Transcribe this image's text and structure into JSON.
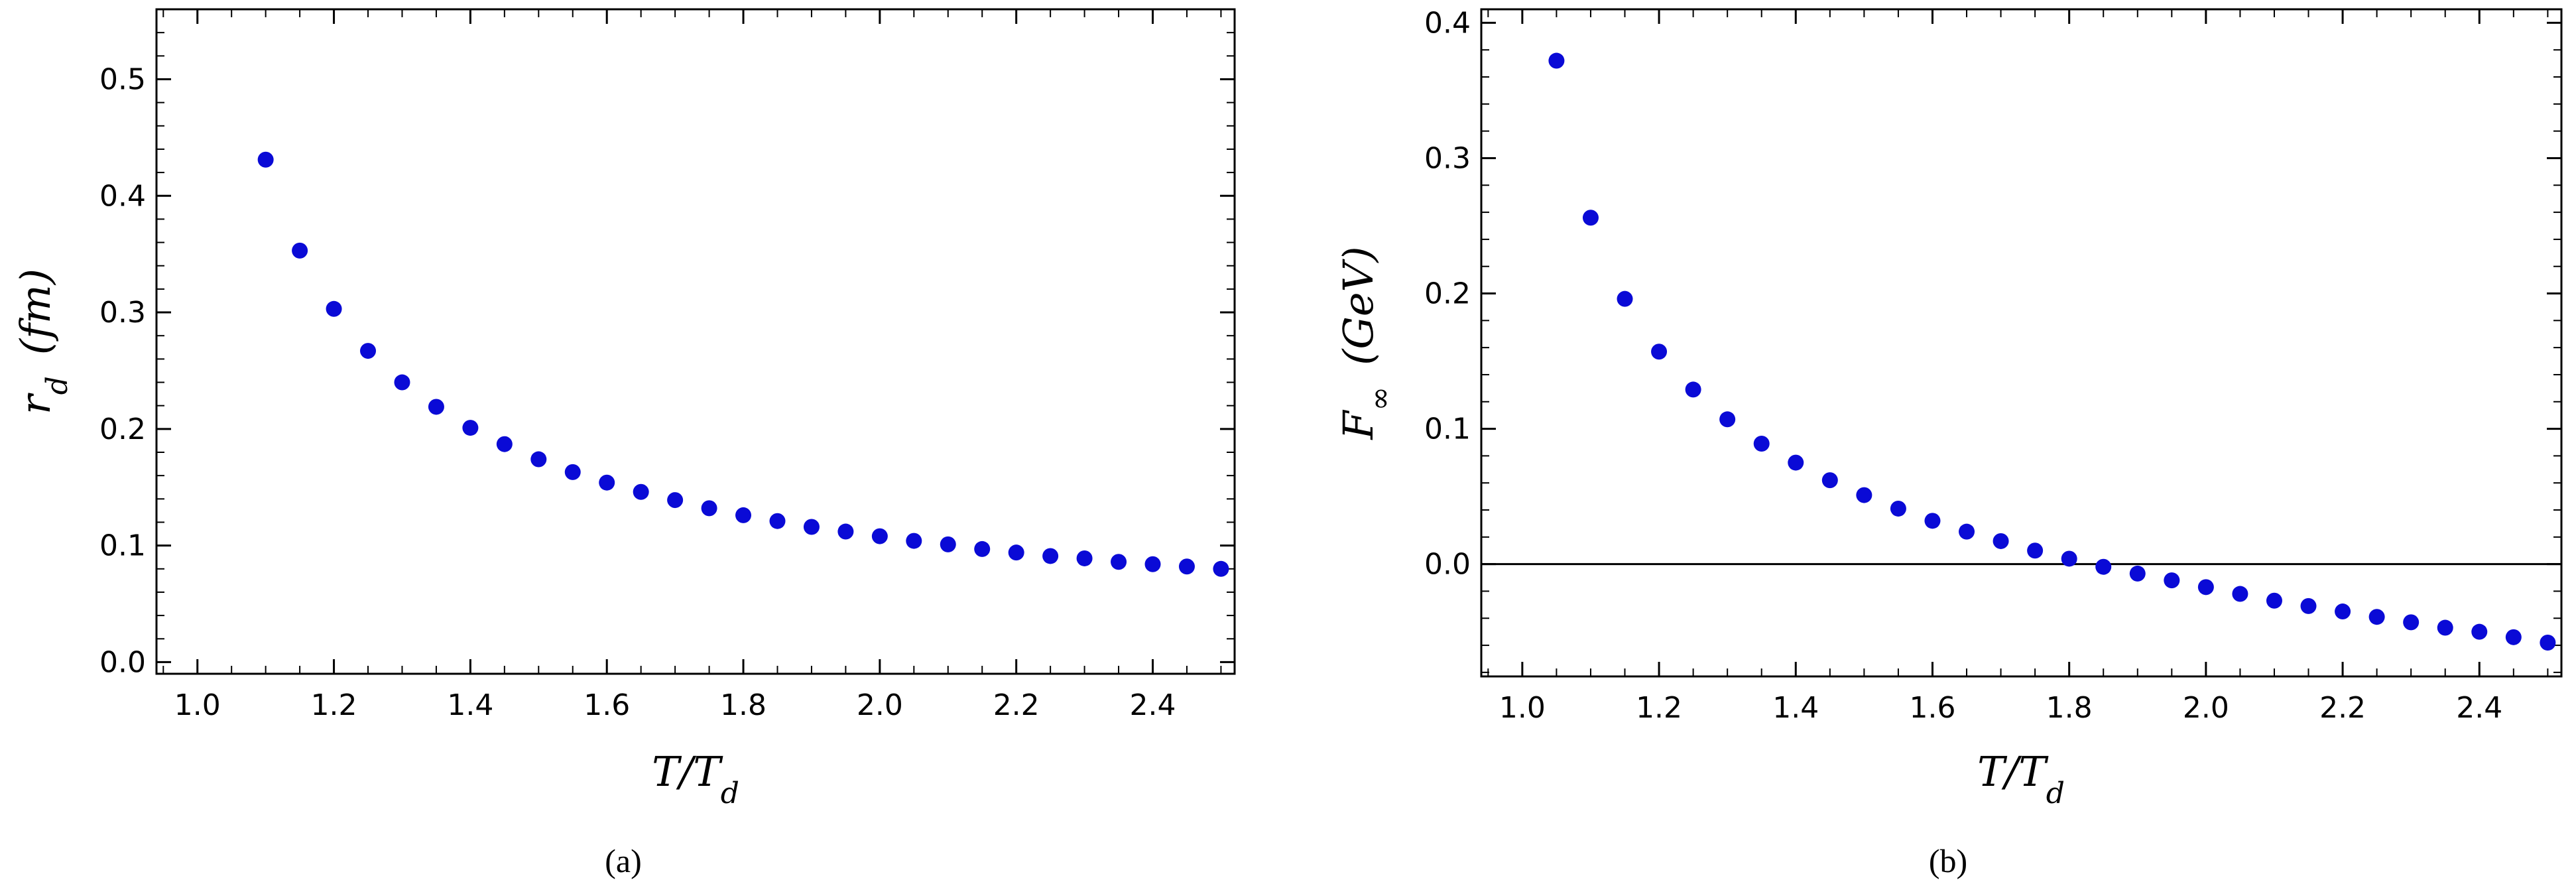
{
  "chart_data": [
    {
      "type": "scatter",
      "panel_label": "(a)",
      "xlabel": "T/T_d",
      "ylabel": "r_d (fm)",
      "xlim": [
        0.94,
        2.52
      ],
      "ylim": [
        -0.01,
        0.56
      ],
      "xticks": [
        "1.0",
        "1.2",
        "1.4",
        "1.6",
        "1.8",
        "2.0",
        "2.2",
        "2.4"
      ],
      "yticks": [
        "0.0",
        "0.1",
        "0.2",
        "0.3",
        "0.4",
        "0.5"
      ],
      "grid": false,
      "color": "#0a0ad6",
      "x": [
        1.1,
        1.15,
        1.2,
        1.25,
        1.3,
        1.35,
        1.4,
        1.45,
        1.5,
        1.55,
        1.6,
        1.65,
        1.7,
        1.75,
        1.8,
        1.85,
        1.9,
        1.95,
        2.0,
        2.05,
        2.1,
        2.15,
        2.2,
        2.25,
        2.3,
        2.35,
        2.4,
        2.45,
        2.5
      ],
      "y": [
        0.431,
        0.353,
        0.303,
        0.267,
        0.24,
        0.219,
        0.201,
        0.187,
        0.174,
        0.163,
        0.154,
        0.146,
        0.139,
        0.132,
        0.126,
        0.121,
        0.116,
        0.112,
        0.108,
        0.104,
        0.101,
        0.097,
        0.094,
        0.091,
        0.089,
        0.086,
        0.084,
        0.082,
        0.08
      ]
    },
    {
      "type": "scatter",
      "panel_label": "(b)",
      "xlabel": "T/T_d",
      "ylabel": "F_∞ (GeV)",
      "xlim": [
        0.94,
        2.52
      ],
      "ylim": [
        -0.083,
        0.41
      ],
      "xticks": [
        "1.0",
        "1.2",
        "1.4",
        "1.6",
        "1.8",
        "2.0",
        "2.2",
        "2.4"
      ],
      "yticks": [
        "0.0",
        "0.1",
        "0.2",
        "0.3",
        "0.4"
      ],
      "grid": false,
      "hline": 0.0,
      "color": "#0a0ad6",
      "x": [
        1.05,
        1.1,
        1.15,
        1.2,
        1.25,
        1.3,
        1.35,
        1.4,
        1.45,
        1.5,
        1.55,
        1.6,
        1.65,
        1.7,
        1.75,
        1.8,
        1.85,
        1.9,
        1.95,
        2.0,
        2.05,
        2.1,
        2.15,
        2.2,
        2.25,
        2.3,
        2.35,
        2.4,
        2.45,
        2.5
      ],
      "y": [
        0.372,
        0.256,
        0.196,
        0.157,
        0.129,
        0.107,
        0.089,
        0.075,
        0.062,
        0.051,
        0.041,
        0.032,
        0.024,
        0.017,
        0.01,
        0.004,
        -0.002,
        -0.007,
        -0.012,
        -0.017,
        -0.022,
        -0.027,
        -0.031,
        -0.035,
        -0.039,
        -0.043,
        -0.047,
        -0.05,
        -0.054,
        -0.058
      ]
    }
  ]
}
